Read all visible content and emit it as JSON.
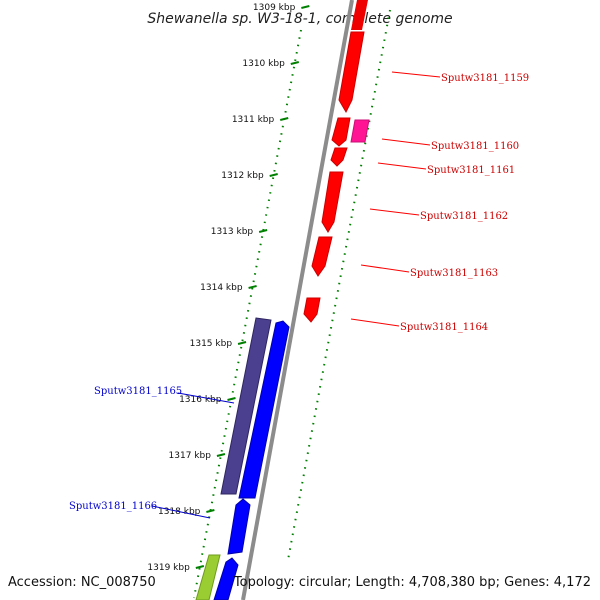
{
  "header": {
    "title": "Shewanella sp. W3-18-1, complete genome"
  },
  "footer": {
    "accession": "Accession: NC_008750",
    "summary": "Topology: circular; Length: 4,708,380 bp; Genes: 4,172"
  },
  "colors": {
    "forward_cds": "#0000ff",
    "forward_cds_alt": "#4b3f8f",
    "reverse_cds": "#ff0000",
    "reverse_cds_alt": "#ff1493",
    "rna_gene": "#9acd32",
    "backbone": "#8c8c8c",
    "tick": "#008000"
  },
  "ticks": [
    "1309 kbp",
    "1310 kbp",
    "1311 kbp",
    "1312 kbp",
    "1313 kbp",
    "1314 kbp",
    "1315 kbp",
    "1316 kbp",
    "1317 kbp",
    "1318 kbp",
    "1319 kbp"
  ],
  "genes": {
    "reverse": [
      "Sputw3181_1159",
      "Sputw3181_1160",
      "Sputw3181_1161",
      "Sputw3181_1162",
      "Sputw3181_1163",
      "Sputw3181_1164"
    ],
    "forward": [
      "Sputw3181_1165",
      "Sputw3181_1166"
    ]
  }
}
